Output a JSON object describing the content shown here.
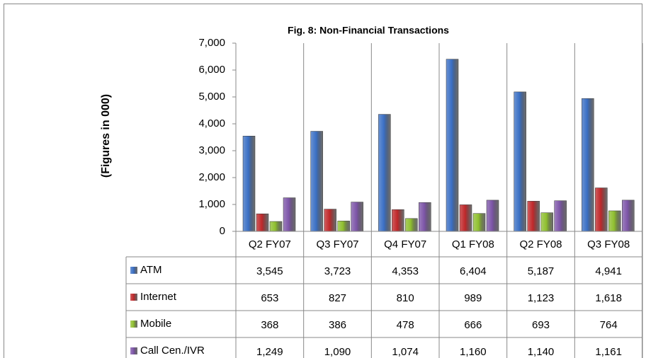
{
  "chart_data": {
    "type": "bar",
    "title": "Fig. 8: Non-Financial Transactions",
    "y_label": "(Figures in 000)",
    "categories": [
      "Q2 FY07",
      "Q3 FY07",
      "Q4 FY07",
      "Q1 FY08",
      "Q2 FY08",
      "Q3 FY08"
    ],
    "series": [
      {
        "name": "ATM",
        "color": "#3a6fc4",
        "values": [
          3545,
          3723,
          4353,
          6404,
          5187,
          4941
        ],
        "value_labels": [
          "3,545",
          "3,723",
          "4,353",
          "6,404",
          "5,187",
          "4,941"
        ]
      },
      {
        "name": "Internet",
        "color": "#c0282a",
        "values": [
          653,
          827,
          810,
          989,
          1123,
          1618
        ],
        "value_labels": [
          "653",
          "827",
          "810",
          "989",
          "1,123",
          "1,618"
        ]
      },
      {
        "name": "Mobile",
        "color": "#8fbf2f",
        "values": [
          368,
          386,
          478,
          666,
          693,
          764
        ],
        "value_labels": [
          "368",
          "386",
          "478",
          "666",
          "693",
          "764"
        ]
      },
      {
        "name": "Call Cen./IVR",
        "color": "#7d55a8",
        "values": [
          1249,
          1090,
          1074,
          1160,
          1140,
          1161
        ],
        "value_labels": [
          "1,249",
          "1,090",
          "1,074",
          "1,160",
          "1,140",
          "1,161"
        ]
      }
    ],
    "ylim": [
      0,
      7000
    ],
    "yticks": [
      0,
      {
        "value": 1000,
        "label": "1,000"
      },
      {
        "value": 2000,
        "label": "2,000"
      },
      {
        "value": 3000,
        "label": "3,000"
      },
      {
        "value": 4000,
        "label": "4,000"
      },
      {
        "value": 5000,
        "label": "5,000"
      },
      {
        "value": 6000,
        "label": "6,000"
      },
      {
        "value": 7000,
        "label": "7,000"
      }
    ],
    "grid": false
  }
}
